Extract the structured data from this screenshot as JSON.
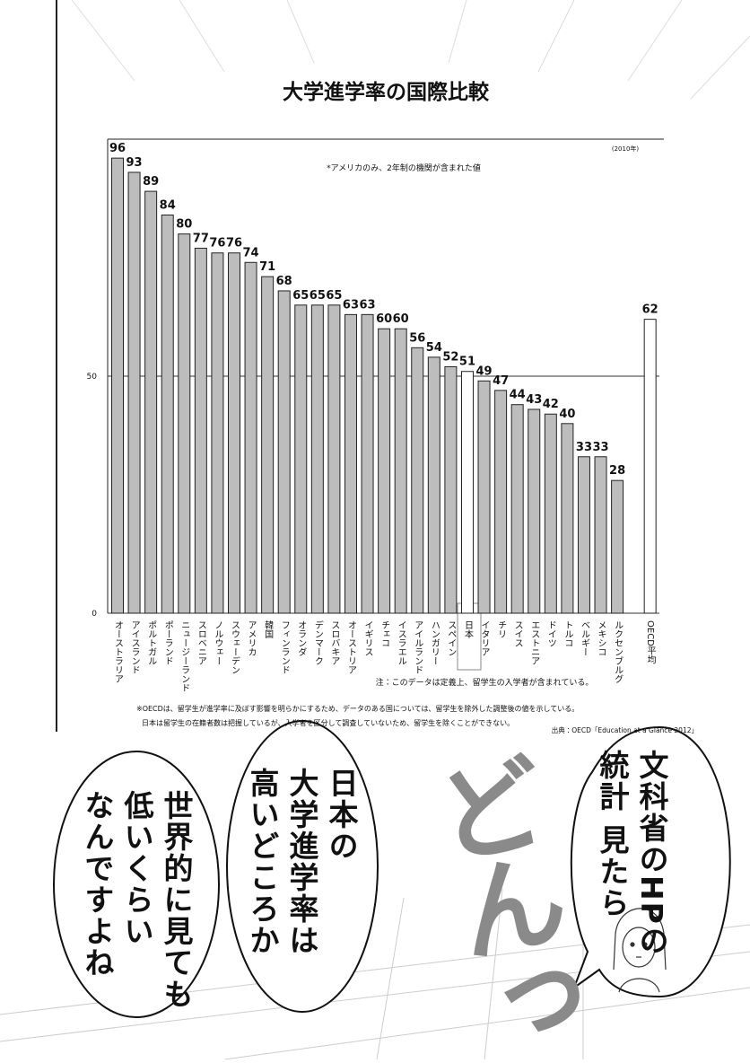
{
  "chart_data": {
    "type": "bar",
    "title": "大学進学率の国際比較",
    "year_note": "(2010年)",
    "annotation": "*アメリカのみ、2年制の機関が含まれた値",
    "categories": [
      "オーストラリア",
      "アイスランド",
      "ポルトガル",
      "ポーランド",
      "ニュージーランド",
      "スロベニア",
      "ノルウェー",
      "スウェーデン",
      "アメリカ",
      "韓国",
      "フィンランド",
      "オランダ",
      "デンマーク",
      "スロバキア",
      "オーストリア",
      "イギリス",
      "チェコ",
      "イスラエル",
      "アイルランド",
      "ハンガリー",
      "スペイン",
      "日本",
      "イタリア",
      "チリ",
      "スイス",
      "エストニア",
      "ドイツ",
      "トルコ",
      "ベルギー",
      "メキシコ",
      "ルクセンブルグ",
      "OECD平均"
    ],
    "values": [
      96,
      93,
      89,
      84,
      80,
      77,
      76,
      76,
      74,
      71,
      68,
      65,
      65,
      65,
      63,
      63,
      60,
      60,
      56,
      54,
      52,
      51,
      49,
      47,
      44,
      43,
      42,
      40,
      33,
      33,
      28,
      62
    ],
    "colors": [
      "#bdbdbd",
      "#bdbdbd",
      "#bdbdbd",
      "#bdbdbd",
      "#bdbdbd",
      "#bdbdbd",
      "#bdbdbd",
      "#bdbdbd",
      "#bdbdbd",
      "#bdbdbd",
      "#bdbdbd",
      "#bdbdbd",
      "#bdbdbd",
      "#bdbdbd",
      "#bdbdbd",
      "#bdbdbd",
      "#bdbdbd",
      "#bdbdbd",
      "#bdbdbd",
      "#bdbdbd",
      "#bdbdbd",
      "#ffffff",
      "#bdbdbd",
      "#bdbdbd",
      "#bdbdbd",
      "#bdbdbd",
      "#bdbdbd",
      "#bdbdbd",
      "#bdbdbd",
      "#bdbdbd",
      "#bdbdbd",
      "#ffffff"
    ],
    "ylim": [
      0,
      100
    ],
    "yticks": [
      0,
      50
    ],
    "grid": true,
    "notes": [
      "注：このデータは定義上、留学生の入学者が含まれている。",
      "※OECDは、留学生が進学率に及ぼす影響を明らかにするため、データのある国については、留学生を除外した調整後の値を示している。",
      "日本は留学生の在籍者数は把握しているが、入学者を区分して調査していないため、留学生を除くことができない。"
    ],
    "source": "出典：OECD「Education at a Glance 2012」"
  },
  "bubbles": [
    {
      "lines": [
        "文科省のHPの",
        "統計 見たら"
      ]
    },
    {
      "lines": [
        "日本の",
        "大学進学率は",
        "高いどころか"
      ]
    },
    {
      "lines": [
        "世界的に見ても",
        "低いくらい",
        "なんですよね"
      ]
    }
  ],
  "sfx": "どんっ"
}
